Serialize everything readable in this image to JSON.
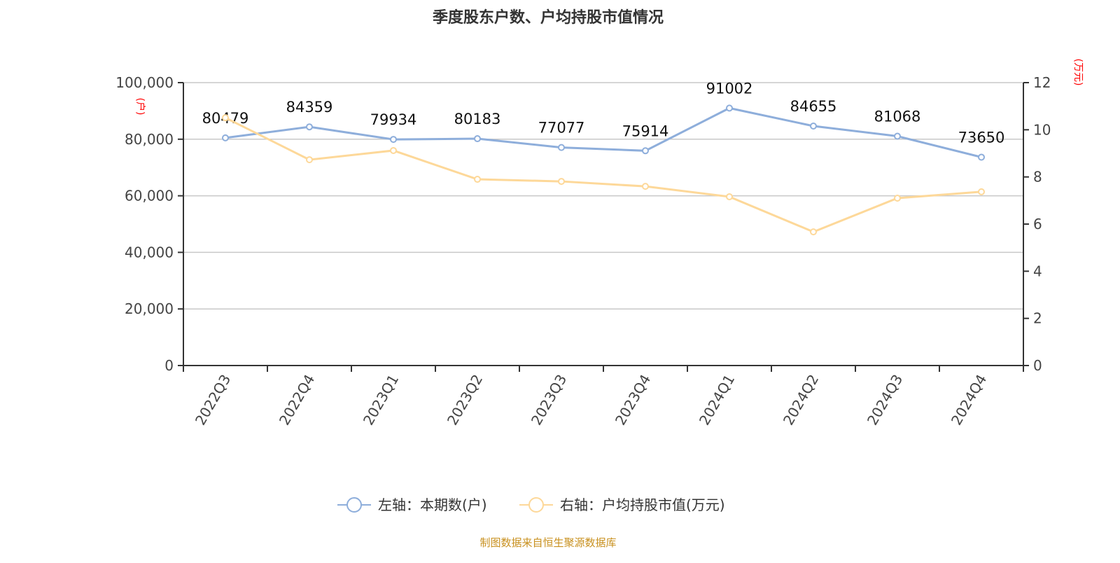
{
  "chart_data": {
    "type": "line",
    "title": "季度股东户数、户均持股市值情况",
    "categories": [
      "2022Q3",
      "2022Q4",
      "2023Q1",
      "2023Q2",
      "2023Q3",
      "2023Q4",
      "2024Q1",
      "2024Q2",
      "2024Q3",
      "2024Q4"
    ],
    "left_axis": {
      "label": "(户)",
      "ylim": [
        0,
        100000
      ],
      "ticks": [
        "0",
        "20,000",
        "40,000",
        "60,000",
        "80,000",
        "100,000"
      ],
      "tick_values": [
        0,
        20000,
        40000,
        60000,
        80000,
        100000
      ]
    },
    "right_axis": {
      "label": "(万元)",
      "ylim": [
        0,
        12
      ],
      "ticks": [
        "0",
        "2",
        "4",
        "6",
        "8",
        "10",
        "12"
      ],
      "tick_values": [
        0,
        2,
        4,
        6,
        8,
        10,
        12
      ]
    },
    "series": [
      {
        "name": "左轴：本期数(户)",
        "axis": "left",
        "color": "#8eaedb",
        "values": [
          80479,
          84359,
          79934,
          80183,
          77077,
          75914,
          91002,
          84655,
          81068,
          73650
        ],
        "labels": [
          "80479",
          "84359",
          "79934",
          "80183",
          "77077",
          "75914",
          "91002",
          "84655",
          "81068",
          "73650"
        ]
      },
      {
        "name": "右轴：户均持股市值(万元)",
        "axis": "right",
        "color": "#fdd899",
        "values": [
          10.51,
          8.73,
          9.12,
          7.9,
          7.81,
          7.6,
          7.16,
          5.67,
          7.1,
          7.37
        ]
      }
    ],
    "grid": true,
    "legend": "bottom-center"
  },
  "source": "制图数据来自恒生聚源数据库"
}
